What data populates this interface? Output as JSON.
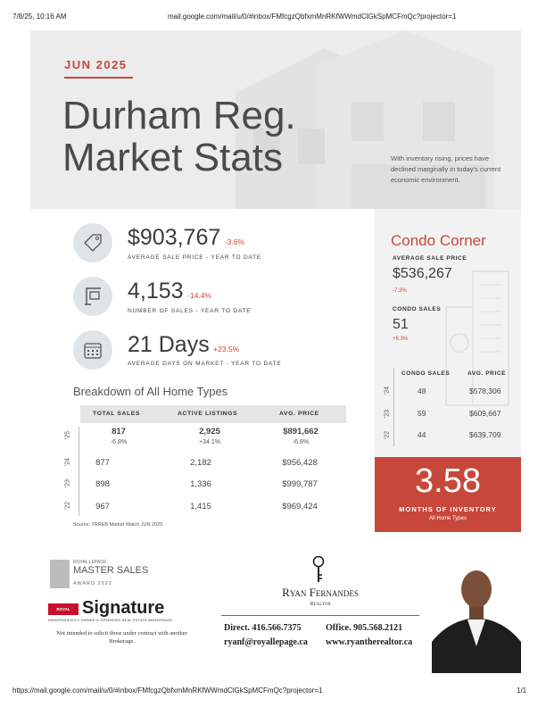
{
  "browser": {
    "timestamp": "7/8/25, 10:16 AM",
    "header_url": "mail.google.com/mail/u/0/#inbox/FMfcgzQbfxmMnRKfWWmdClGkSpMCFmQc?projector=1",
    "footer_url": "https://mail.google.com/mail/u/0/#inbox/FMfcgzQbfxmMnRKfWWmdClGkSpMCFmQc?projector=1",
    "page_count": "1/1"
  },
  "hero": {
    "month": "JUN 2025",
    "title_line1": "Durham Reg.",
    "title_line2": "Market Stats",
    "tagline": "With inventory rising, prices have declined marginally in today's current economic environment."
  },
  "stats": [
    {
      "icon": "price-tag-icon",
      "value": "$903,767",
      "change": "-3.6%",
      "label": "AVERAGE SALE PRICE - YEAR TO DATE"
    },
    {
      "icon": "sold-sign-icon",
      "value": "4,153",
      "change": "-14.4%",
      "label": "NUMBER OF SALES - YEAR TO DATE"
    },
    {
      "icon": "calendar-icon",
      "value": "21 Days",
      "change": "+23.5%",
      "label": "AVERAGE DAYS ON MARKET - YEAR TO DATE"
    }
  ],
  "breakdown": {
    "title": "Breakdown of All Home Types",
    "headers": [
      "TOTAL SALES",
      "ACTIVE LISTINGS",
      "AVG. PRICE"
    ],
    "rows": [
      {
        "year": "'25",
        "sales": "817",
        "sales_chg": "-6.8%",
        "listings": "2,925",
        "listings_chg": "+34.1%",
        "price": "$891,662",
        "price_chg": "-6.8%"
      },
      {
        "year": "'24",
        "sales": "877",
        "listings": "2,182",
        "price": "$956,428"
      },
      {
        "year": "'23",
        "sales": "898",
        "listings": "1,336",
        "price": "$999,787"
      },
      {
        "year": "'22",
        "sales": "967",
        "listings": "1,415",
        "price": "$969,424"
      }
    ],
    "source": "Source: TRREB Market Watch JUN 2025"
  },
  "condo": {
    "title": "Condo Corner",
    "avg_label": "AVERAGE SALE PRICE",
    "avg_value": "$536,267",
    "avg_change": "-7.3%",
    "sales_label": "CONDO SALES",
    "sales_value": "51",
    "sales_change": "+6.3%",
    "table_headers": [
      "CONDO SALES",
      "AVG. PRICE"
    ],
    "rows": [
      {
        "year": "'24",
        "sales": "48",
        "price": "$578,306"
      },
      {
        "year": "'23",
        "sales": "59",
        "price": "$609,667"
      },
      {
        "year": "'22",
        "sales": "44",
        "price": "$639,709"
      }
    ]
  },
  "inventory": {
    "value": "3.58",
    "label": "MONTHS OF INVENTORY",
    "sub": "All Home Types"
  },
  "footer": {
    "award_brand": "ROYAL LEPAGE",
    "award_title": "MASTER SALES",
    "award_year": "AWARD 2022",
    "royal_lepage": "ROYAL LePAGE",
    "signature": "Signature",
    "brokerage_line": "INDEPENDENTLY OWNED & OPERATED REAL ESTATE BROKERAGE",
    "disclaimer": "Not intended to solicit those under contract with another Brokerage.",
    "agent_name": "Ryan Fernandes",
    "agent_title": "Realtor",
    "direct": "Direct. 416.566.7375",
    "office": "Office. 905.568.2121",
    "email": "ryanf@royallepage.ca",
    "website": "www.ryantherealtor.ca"
  },
  "colors": {
    "accent": "#c8473b",
    "text": "#3c3c3c",
    "panel": "#f2f2f2"
  }
}
